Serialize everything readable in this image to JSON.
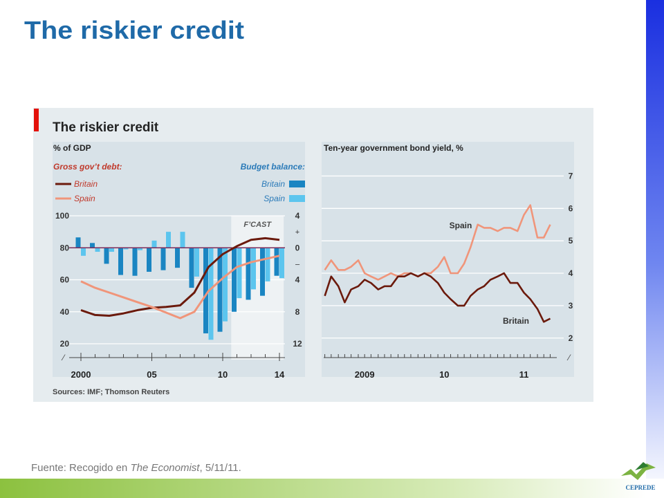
{
  "slide": {
    "title": "The riskier credit",
    "footnote": {
      "prefix": "Fuente: Recogido en ",
      "source": "The Economist",
      "suffix": ", 5/11/11."
    },
    "logo": "CEPREDE"
  },
  "figure": {
    "title": "The riskier credit",
    "sources": "Sources: IMF; Thomson Reuters"
  },
  "chart_data": [
    {
      "type": "combo",
      "y_label": "% of GDP",
      "line_legend_title": "Gross gov’t debt:",
      "bar_legend_title": "Budget balance:",
      "x": [
        2000,
        2001,
        2002,
        2003,
        2004,
        2005,
        2006,
        2007,
        2008,
        2009,
        2010,
        2011,
        2012,
        2013,
        2014
      ],
      "xlim": [
        2000,
        2014
      ],
      "xticks": [
        2000,
        {
          "value": 2005,
          "label": "05"
        },
        {
          "value": 2010,
          "label": "10"
        },
        {
          "value": 2014,
          "label": "14"
        }
      ],
      "ylim": [
        20,
        100
      ],
      "yticks": [
        20,
        40,
        60,
        80,
        100
      ],
      "y2lim": [
        -12,
        4
      ],
      "y2ticks": [
        4,
        0,
        {
          "value": -4,
          "label": "4"
        },
        {
          "value": -8,
          "label": "8"
        },
        {
          "value": -12,
          "label": "12"
        }
      ],
      "y2_signs": {
        "plus": "+",
        "minus": "–"
      },
      "shade": {
        "from": 2010.6,
        "to": 2014.3,
        "label": "F’CAST"
      },
      "grid": true,
      "series": [
        {
          "name": "Britain",
          "kind": "line",
          "color": "#6b1a0c",
          "values": [
            41,
            38,
            37.5,
            39,
            41,
            42.5,
            43,
            44,
            52,
            68,
            76,
            81,
            85,
            86,
            85
          ]
        },
        {
          "name": "Spain",
          "kind": "line",
          "color": "#f0957a",
          "values": [
            59,
            55,
            52,
            49,
            46,
            43,
            39.5,
            36,
            40,
            53,
            61,
            68,
            71,
            73,
            75
          ]
        },
        {
          "name": "Britain",
          "kind": "bar",
          "axis": "y2",
          "color": "#1a85c2",
          "values": [
            1.3,
            0.6,
            -2,
            -3.4,
            -3.5,
            -3,
            -2.8,
            -2.5,
            -5,
            -10.7,
            -10.5,
            -8,
            -6.5,
            -6,
            -3.5
          ]
        },
        {
          "name": "Spain",
          "kind": "bar",
          "axis": "y2",
          "color": "#5cc5ee",
          "values": [
            -1,
            -0.5,
            -0.5,
            -0.2,
            -0.3,
            0.9,
            2,
            2,
            -3.6,
            -11.5,
            -9.2,
            -6.3,
            -5.2,
            -4.2,
            -3.8
          ]
        }
      ]
    },
    {
      "type": "line",
      "title": "Ten-year government bond yield, %",
      "x": [
        2009,
        2009.08,
        2009.17,
        2009.25,
        2009.33,
        2009.42,
        2009.5,
        2009.58,
        2009.67,
        2009.75,
        2009.83,
        2009.92,
        2010,
        2010.08,
        2010.17,
        2010.25,
        2010.33,
        2010.42,
        2010.5,
        2010.58,
        2010.67,
        2010.75,
        2010.83,
        2010.92,
        2011,
        2011.08,
        2011.17,
        2011.25,
        2011.33,
        2011.42,
        2011.5,
        2011.58,
        2011.67,
        2011.75,
        2011.83
      ],
      "xlim": [
        2008.96,
        2012.13
      ],
      "xticks": [
        {
          "value": 2009.5,
          "label": "2009"
        },
        {
          "value": 2010.5,
          "label": "10"
        },
        {
          "value": 2011.5,
          "label": "11"
        }
      ],
      "ylim": [
        0.8,
        7.5
      ],
      "yticks": [
        2,
        3,
        4,
        5,
        6,
        7
      ],
      "grid": true,
      "series": [
        {
          "name": "Spain",
          "color": "#f0957a",
          "values": [
            4.1,
            4.4,
            4.1,
            4.1,
            4.2,
            4.4,
            4.0,
            3.9,
            3.8,
            3.9,
            4.0,
            3.9,
            4.0,
            4.0,
            3.9,
            4.0,
            4.0,
            4.2,
            4.5,
            4.0,
            4.0,
            4.3,
            4.8,
            5.5,
            5.4,
            5.4,
            5.3,
            5.4,
            5.4,
            5.3,
            5.8,
            6.1,
            5.1,
            5.1,
            5.5
          ]
        },
        {
          "name": "Britain",
          "color": "#6b1a0c",
          "values": [
            3.3,
            3.9,
            3.6,
            3.1,
            3.5,
            3.6,
            3.8,
            3.7,
            3.5,
            3.6,
            3.6,
            3.9,
            3.9,
            4.0,
            3.9,
            4.0,
            3.9,
            3.7,
            3.4,
            3.2,
            3.0,
            3.0,
            3.3,
            3.5,
            3.6,
            3.8,
            3.9,
            4.0,
            3.7,
            3.7,
            3.4,
            3.2,
            2.9,
            2.5,
            2.6
          ]
        }
      ]
    }
  ]
}
